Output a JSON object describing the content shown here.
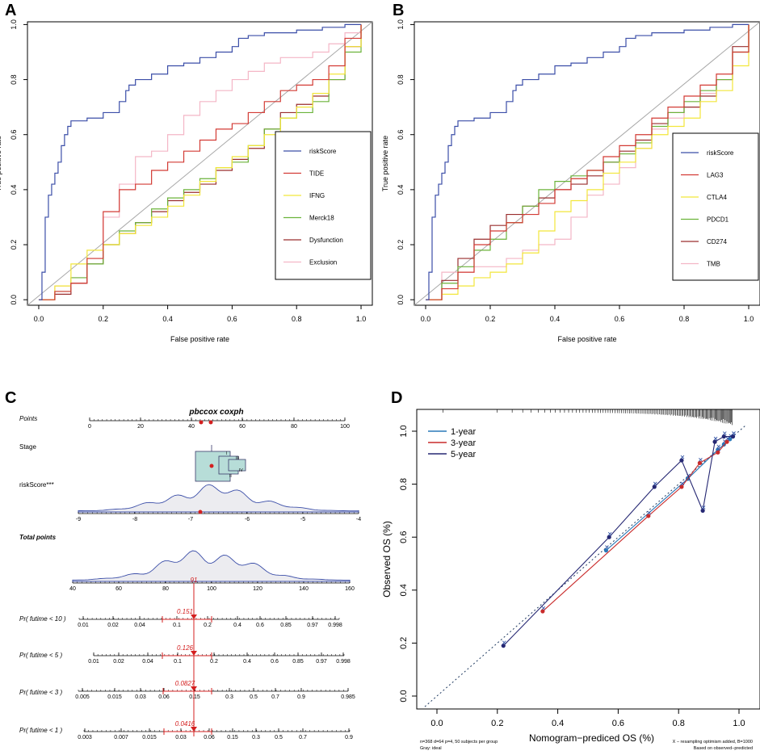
{
  "panels": {
    "A": {
      "letter": "A"
    },
    "B": {
      "letter": "B"
    },
    "C": {
      "letter": "C"
    },
    "D": {
      "letter": "D"
    }
  },
  "chart_data": [
    {
      "id": "A",
      "type": "line",
      "xlabel": "False positive rate",
      "ylabel": "True positive rate",
      "xlim": [
        0,
        1
      ],
      "ylim": [
        0,
        1
      ],
      "xticks": [
        "0.0",
        "0.2",
        "0.4",
        "0.6",
        "0.8",
        "1.0"
      ],
      "yticks": [
        "0.0",
        "0.2",
        "0.4",
        "0.6",
        "0.8",
        "1.0"
      ],
      "diagonal": true,
      "legend_position": "right",
      "series": [
        {
          "name": "riskScore",
          "color": "#3b4ea8",
          "x": [
            0,
            0.01,
            0.01,
            0.02,
            0.03,
            0.04,
            0.05,
            0.06,
            0.07,
            0.08,
            0.09,
            0.1,
            0.12,
            0.15,
            0.2,
            0.25,
            0.27,
            0.28,
            0.3,
            0.35,
            0.4,
            0.45,
            0.5,
            0.55,
            0.6,
            0.62,
            0.65,
            0.7,
            0.75,
            0.8,
            0.85,
            0.88,
            0.9,
            0.95,
            0.97,
            1.0
          ],
          "y": [
            0,
            0.03,
            0.1,
            0.3,
            0.38,
            0.42,
            0.46,
            0.5,
            0.56,
            0.6,
            0.63,
            0.65,
            0.65,
            0.66,
            0.68,
            0.72,
            0.76,
            0.78,
            0.8,
            0.82,
            0.85,
            0.86,
            0.88,
            0.9,
            0.92,
            0.95,
            0.96,
            0.97,
            0.97,
            0.98,
            0.98,
            0.99,
            0.99,
            1.0,
            1.0,
            1.0
          ]
        },
        {
          "name": "TIDE",
          "color": "#d33b35",
          "x": [
            0,
            0.05,
            0.1,
            0.15,
            0.2,
            0.25,
            0.3,
            0.35,
            0.4,
            0.45,
            0.5,
            0.55,
            0.6,
            0.65,
            0.7,
            0.75,
            0.8,
            0.85,
            0.9,
            0.95,
            1.0
          ],
          "y": [
            0,
            0.03,
            0.06,
            0.15,
            0.32,
            0.4,
            0.42,
            0.47,
            0.5,
            0.54,
            0.58,
            0.62,
            0.64,
            0.68,
            0.72,
            0.76,
            0.78,
            0.8,
            0.85,
            0.95,
            1.0
          ]
        },
        {
          "name": "IFNG",
          "color": "#f2e63a",
          "x": [
            0,
            0.05,
            0.1,
            0.15,
            0.2,
            0.25,
            0.3,
            0.35,
            0.4,
            0.45,
            0.5,
            0.55,
            0.6,
            0.65,
            0.7,
            0.75,
            0.8,
            0.85,
            0.9,
            0.95,
            1.0
          ],
          "y": [
            0,
            0.05,
            0.13,
            0.18,
            0.2,
            0.24,
            0.27,
            0.3,
            0.34,
            0.38,
            0.43,
            0.48,
            0.52,
            0.56,
            0.6,
            0.66,
            0.7,
            0.75,
            0.82,
            0.92,
            1.0
          ]
        },
        {
          "name": "Merck18",
          "color": "#6bb33a",
          "x": [
            0,
            0.05,
            0.1,
            0.15,
            0.2,
            0.25,
            0.3,
            0.35,
            0.4,
            0.45,
            0.5,
            0.55,
            0.6,
            0.65,
            0.7,
            0.75,
            0.8,
            0.85,
            0.9,
            0.95,
            1.0
          ],
          "y": [
            0,
            0.03,
            0.08,
            0.13,
            0.2,
            0.25,
            0.28,
            0.33,
            0.37,
            0.4,
            0.44,
            0.48,
            0.5,
            0.56,
            0.62,
            0.66,
            0.68,
            0.72,
            0.8,
            0.9,
            1.0
          ]
        },
        {
          "name": "Dysfunction",
          "color": "#9a2e2e",
          "x": [
            0,
            0.05,
            0.1,
            0.15,
            0.2,
            0.25,
            0.3,
            0.35,
            0.4,
            0.45,
            0.5,
            0.55,
            0.6,
            0.65,
            0.7,
            0.75,
            0.8,
            0.85,
            0.9,
            0.95,
            1.0
          ],
          "y": [
            0,
            0.02,
            0.06,
            0.13,
            0.2,
            0.24,
            0.28,
            0.32,
            0.36,
            0.39,
            0.42,
            0.47,
            0.51,
            0.55,
            0.62,
            0.68,
            0.71,
            0.74,
            0.8,
            0.92,
            1.0
          ]
        },
        {
          "name": "Exclusion",
          "color": "#f4b6c6",
          "x": [
            0,
            0.05,
            0.1,
            0.15,
            0.2,
            0.25,
            0.3,
            0.35,
            0.4,
            0.45,
            0.5,
            0.55,
            0.6,
            0.65,
            0.7,
            0.75,
            0.8,
            0.85,
            0.9,
            0.95,
            1.0
          ],
          "y": [
            0,
            0.05,
            0.08,
            0.15,
            0.3,
            0.42,
            0.52,
            0.54,
            0.6,
            0.67,
            0.72,
            0.76,
            0.8,
            0.83,
            0.86,
            0.88,
            0.88,
            0.9,
            0.93,
            0.97,
            1.0
          ]
        }
      ]
    },
    {
      "id": "B",
      "type": "line",
      "xlabel": "False positive rate",
      "ylabel": "True positive rate",
      "xlim": [
        0,
        1
      ],
      "ylim": [
        0,
        1
      ],
      "xticks": [
        "0.0",
        "0.2",
        "0.4",
        "0.6",
        "0.8",
        "1.0"
      ],
      "yticks": [
        "0.0",
        "0.2",
        "0.4",
        "0.6",
        "0.8",
        "1.0"
      ],
      "diagonal": true,
      "legend_position": "right",
      "series": [
        {
          "name": "riskScore",
          "color": "#3b4ea8",
          "x": [
            0,
            0.01,
            0.01,
            0.02,
            0.03,
            0.04,
            0.05,
            0.06,
            0.07,
            0.08,
            0.09,
            0.1,
            0.12,
            0.15,
            0.2,
            0.25,
            0.27,
            0.28,
            0.3,
            0.35,
            0.4,
            0.45,
            0.5,
            0.55,
            0.6,
            0.62,
            0.65,
            0.7,
            0.75,
            0.8,
            0.85,
            0.88,
            0.9,
            0.95,
            0.97,
            1.0
          ],
          "y": [
            0,
            0.03,
            0.1,
            0.3,
            0.38,
            0.42,
            0.46,
            0.5,
            0.56,
            0.6,
            0.63,
            0.65,
            0.65,
            0.66,
            0.68,
            0.72,
            0.76,
            0.78,
            0.8,
            0.82,
            0.85,
            0.86,
            0.88,
            0.9,
            0.92,
            0.95,
            0.96,
            0.97,
            0.97,
            0.98,
            0.98,
            0.99,
            0.99,
            1.0,
            1.0,
            1.0
          ]
        },
        {
          "name": "LAG3",
          "color": "#d33b35",
          "x": [
            0,
            0.05,
            0.1,
            0.15,
            0.2,
            0.25,
            0.3,
            0.35,
            0.4,
            0.45,
            0.5,
            0.55,
            0.6,
            0.65,
            0.7,
            0.75,
            0.8,
            0.85,
            0.9,
            0.95,
            1.0
          ],
          "y": [
            0,
            0.04,
            0.1,
            0.2,
            0.25,
            0.28,
            0.31,
            0.35,
            0.4,
            0.44,
            0.47,
            0.52,
            0.56,
            0.6,
            0.66,
            0.7,
            0.74,
            0.78,
            0.82,
            0.9,
            1.0
          ]
        },
        {
          "name": "CTLA4",
          "color": "#f2e63a",
          "x": [
            0,
            0.05,
            0.1,
            0.15,
            0.2,
            0.25,
            0.3,
            0.35,
            0.4,
            0.45,
            0.5,
            0.55,
            0.6,
            0.65,
            0.7,
            0.75,
            0.8,
            0.85,
            0.9,
            0.95,
            1.0
          ],
          "y": [
            0,
            0.02,
            0.05,
            0.08,
            0.1,
            0.13,
            0.17,
            0.25,
            0.32,
            0.36,
            0.4,
            0.46,
            0.5,
            0.55,
            0.6,
            0.63,
            0.66,
            0.72,
            0.76,
            0.85,
            1.0
          ]
        },
        {
          "name": "PDCD1",
          "color": "#6bb33a",
          "x": [
            0,
            0.05,
            0.1,
            0.15,
            0.2,
            0.25,
            0.3,
            0.35,
            0.4,
            0.45,
            0.5,
            0.55,
            0.6,
            0.65,
            0.7,
            0.75,
            0.8,
            0.85,
            0.9,
            0.95,
            1.0
          ],
          "y": [
            0,
            0.06,
            0.12,
            0.18,
            0.22,
            0.28,
            0.34,
            0.4,
            0.43,
            0.45,
            0.47,
            0.5,
            0.53,
            0.57,
            0.63,
            0.68,
            0.72,
            0.76,
            0.8,
            0.9,
            1.0
          ]
        },
        {
          "name": "CD274",
          "color": "#9a2e2e",
          "x": [
            0,
            0.05,
            0.1,
            0.15,
            0.2,
            0.25,
            0.3,
            0.35,
            0.4,
            0.45,
            0.5,
            0.55,
            0.6,
            0.65,
            0.7,
            0.75,
            0.8,
            0.85,
            0.9,
            0.95,
            1.0
          ],
          "y": [
            0,
            0.07,
            0.15,
            0.22,
            0.27,
            0.31,
            0.34,
            0.37,
            0.4,
            0.42,
            0.45,
            0.5,
            0.54,
            0.58,
            0.64,
            0.68,
            0.7,
            0.74,
            0.8,
            0.92,
            1.0
          ]
        },
        {
          "name": "TMB",
          "color": "#f4b6c6",
          "x": [
            0,
            0.05,
            0.1,
            0.15,
            0.2,
            0.25,
            0.3,
            0.35,
            0.4,
            0.45,
            0.5,
            0.55,
            0.6,
            0.65,
            0.7,
            0.75,
            0.8,
            0.85,
            0.9,
            0.95,
            1.0
          ],
          "y": [
            0,
            0.1,
            0.1,
            0.12,
            0.12,
            0.15,
            0.18,
            0.2,
            0.22,
            0.3,
            0.38,
            0.42,
            0.48,
            0.55,
            0.62,
            0.66,
            0.7,
            0.75,
            0.8,
            0.9,
            1.0
          ]
        }
      ]
    },
    {
      "id": "C",
      "type": "nomogram",
      "title": "pbccox coxph",
      "rows": [
        {
          "label": "Points",
          "italic": true,
          "ticks": [
            "0",
            "20",
            "40",
            "60",
            "80",
            "100"
          ],
          "points": [
            43,
            46
          ]
        },
        {
          "label": "Stage",
          "italic": false,
          "ticks": [],
          "stage_labels": [
            "I",
            "II",
            "III",
            "IV"
          ]
        },
        {
          "label": "riskScore***",
          "italic": false,
          "ticks": [
            "-9",
            "-8",
            "-7",
            "-6",
            "-5",
            "-4"
          ],
          "point": -6.8
        },
        {
          "label": "Total points",
          "italic": true,
          "ticks": [
            "40",
            "60",
            "80",
            "100",
            "120",
            "140",
            "160"
          ],
          "value": "91"
        },
        {
          "label": "Pr( futime < 10 )",
          "italic": true,
          "ticks": [
            "0.01",
            "0.02",
            "0.04",
            "0.1",
            "0.2",
            "0.4",
            "0.6",
            "0.85",
            "0.97",
            "0.998"
          ],
          "value": "0.151"
        },
        {
          "label": "Pr( futime < 5 )",
          "italic": true,
          "ticks": [
            "0.01",
            "0.02",
            "0.04",
            "0.1",
            "0.2",
            "0.4",
            "0.6",
            "0.85",
            "0.97",
            "0.998"
          ],
          "value": "0.126"
        },
        {
          "label": "Pr( futime < 3 )",
          "italic": true,
          "ticks": [
            "0.005",
            "0.015",
            "0.03",
            "0.06",
            "0.15",
            "0.3",
            "0.5",
            "0.7",
            "0.9",
            "0.985"
          ],
          "value": "0.0827"
        },
        {
          "label": "Pr( futime < 1 )",
          "italic": true,
          "ticks": [
            "0.003",
            "0.007",
            "0.015",
            "0.03",
            "0.06",
            "0.15",
            "0.3",
            "0.5",
            "0.7",
            "0.9"
          ],
          "value": "0.0416"
        }
      ]
    },
    {
      "id": "D",
      "type": "scatter",
      "title": "",
      "xlabel": "Nomogram−prediced OS (%)",
      "ylabel": "Observed OS (%)",
      "xlim": [
        -0.04,
        1.0
      ],
      "ylim": [
        -0.04,
        1.03
      ],
      "xticks": [
        "0.0",
        "0.2",
        "0.4",
        "0.6",
        "0.8",
        "1.0"
      ],
      "yticks": [
        "0.0",
        "0.2",
        "0.4",
        "0.6",
        "0.8",
        "1.0"
      ],
      "legend_position": "top-left",
      "footnote_left": [
        "n=368 d=64 p=4, 50 subjects per group",
        "Gray: ideal"
      ],
      "footnote_right": [
        "X − resampling optimism added, B=1000",
        "Based on observed−predicted"
      ],
      "series": [
        {
          "name": "1-year",
          "color": "#2a78b8",
          "x": [
            0.56,
            0.83,
            0.93,
            0.95,
            0.97,
            0.98
          ],
          "y": [
            0.55,
            0.82,
            0.93,
            0.95,
            0.97,
            0.98
          ]
        },
        {
          "name": "3-year",
          "color": "#c92b2b",
          "x": [
            0.35,
            0.7,
            0.81,
            0.87,
            0.93,
            0.96
          ],
          "y": [
            0.32,
            0.68,
            0.79,
            0.88,
            0.92,
            0.96
          ]
        },
        {
          "name": "5-year",
          "color": "#262873",
          "x": [
            0.22,
            0.57,
            0.72,
            0.81,
            0.88,
            0.92,
            0.95,
            0.98
          ],
          "y": [
            0.19,
            0.6,
            0.79,
            0.89,
            0.7,
            0.96,
            0.98,
            0.98
          ]
        }
      ]
    }
  ]
}
